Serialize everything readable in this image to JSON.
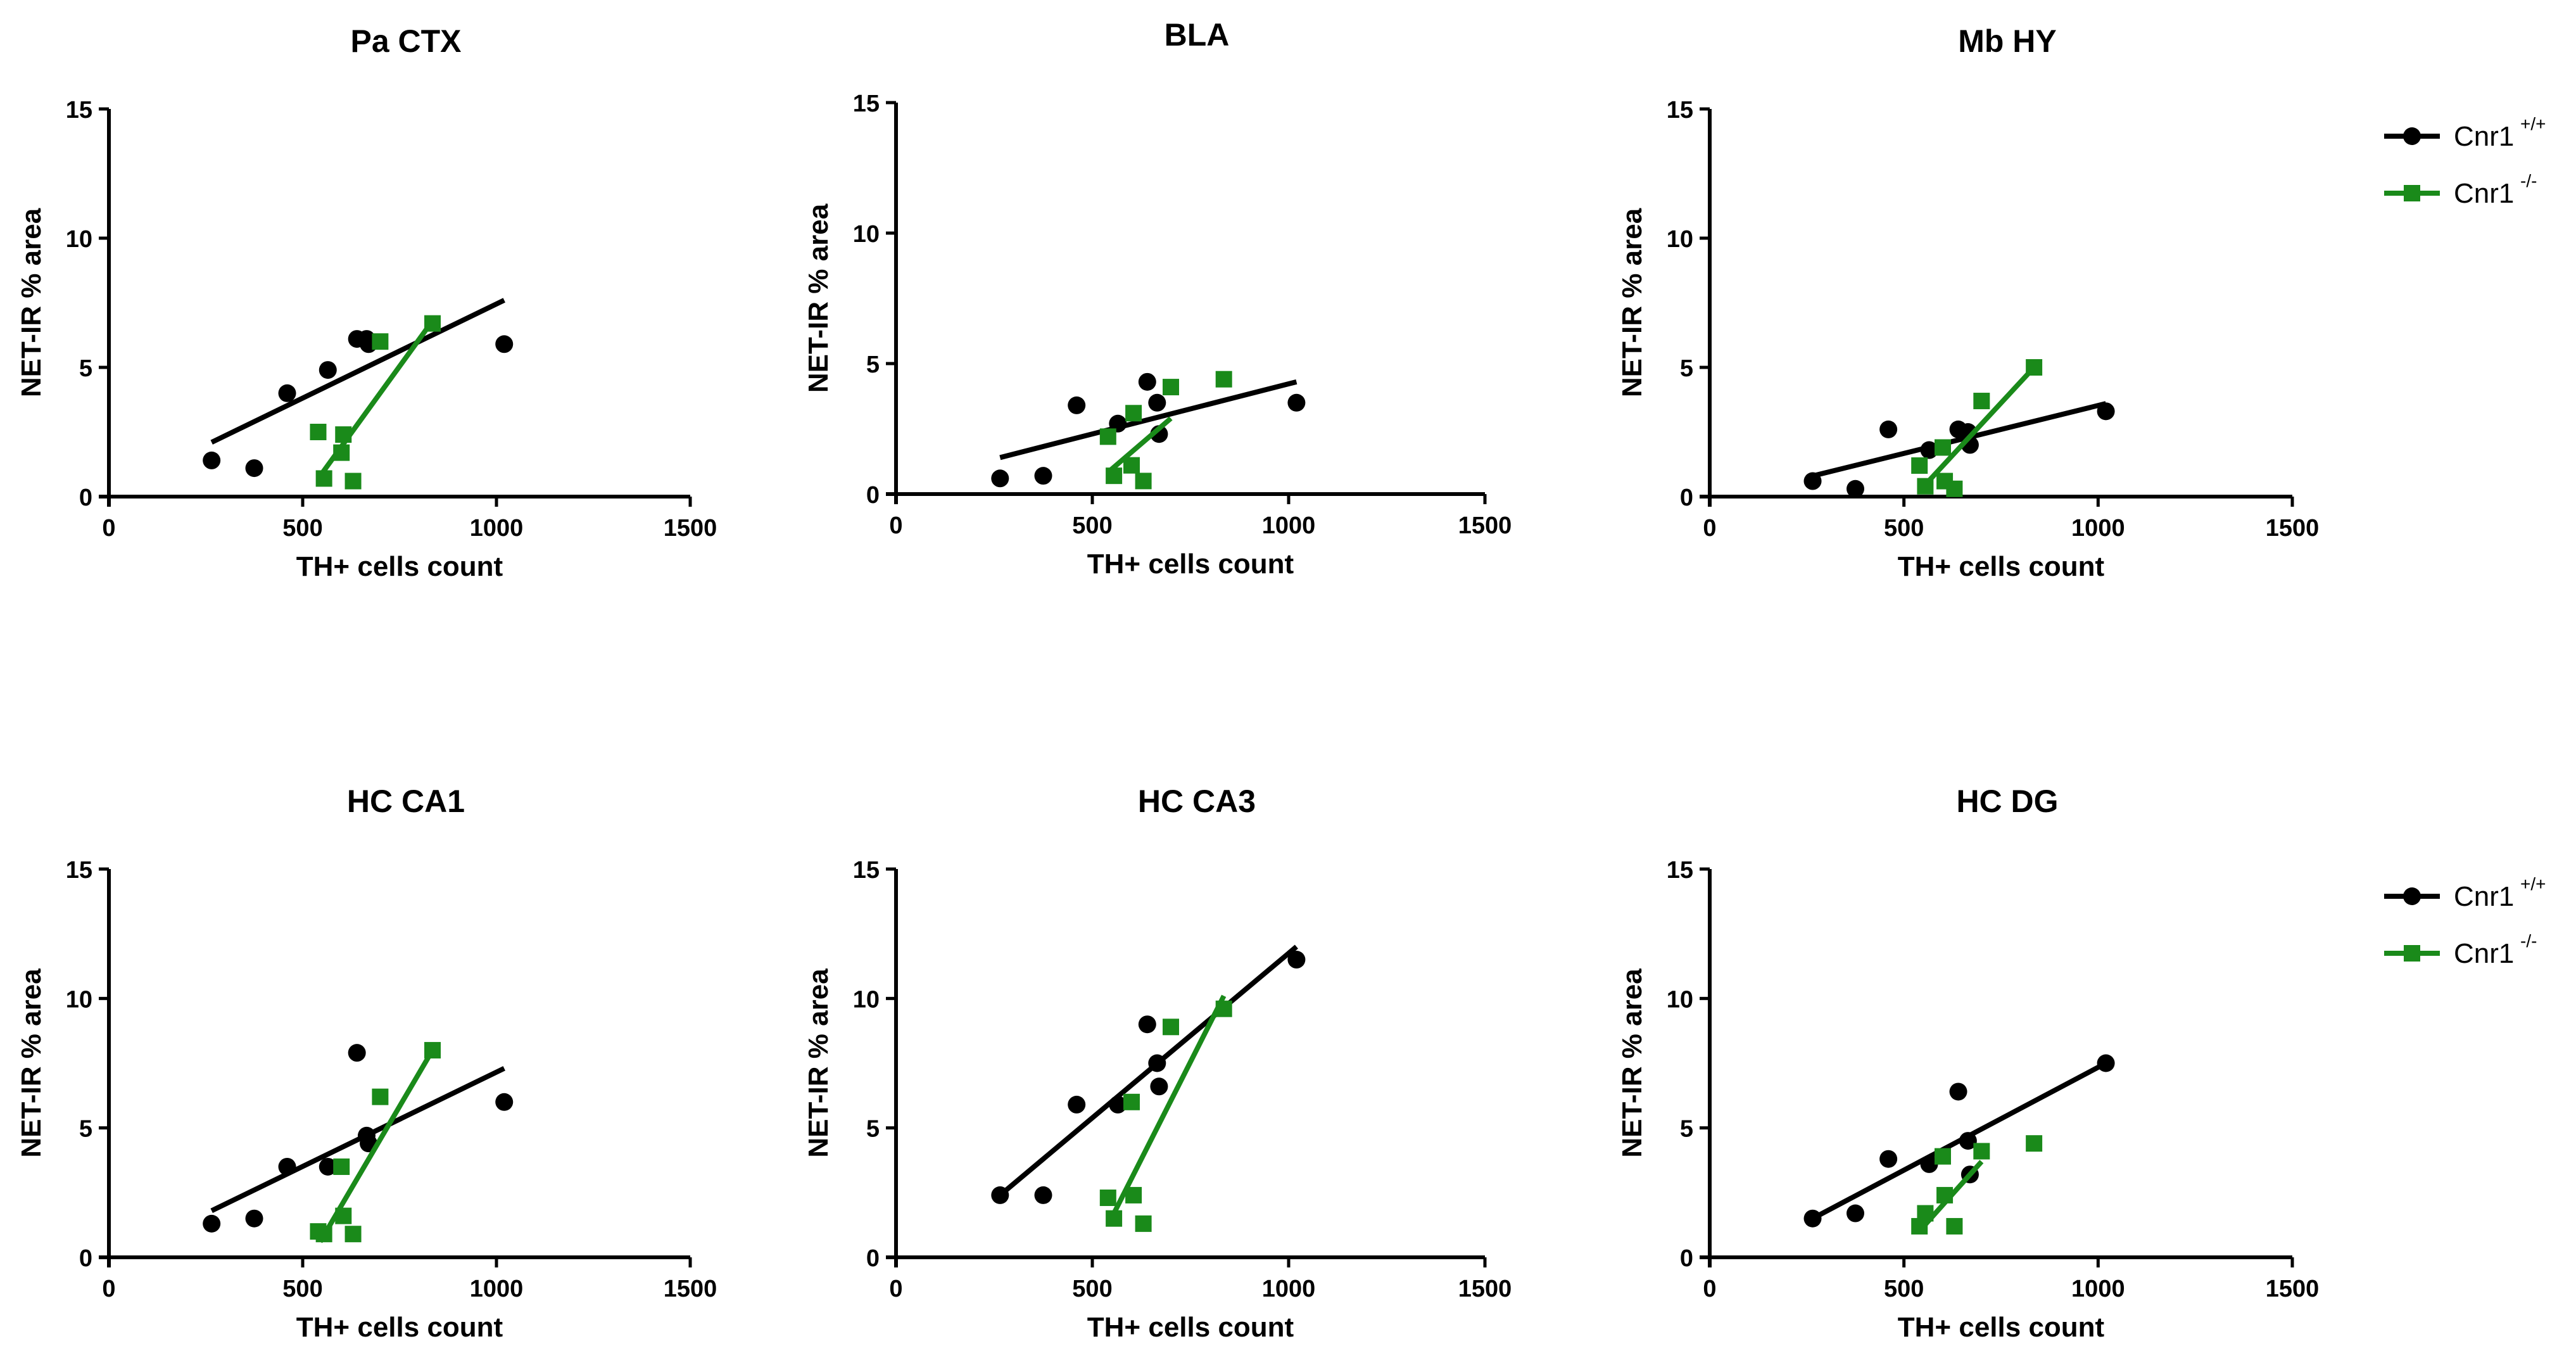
{
  "colors": {
    "wildtype": "#000000",
    "knockout": "#1a8a1a",
    "axis": "#000000",
    "background": "#ffffff"
  },
  "legend": {
    "entries": [
      {
        "series": "wildtype",
        "name": "Cnr1",
        "sup": "+/+",
        "marker": "circle"
      },
      {
        "series": "knockout",
        "name": "Cnr1",
        "sup": "-/-",
        "marker": "square"
      }
    ]
  },
  "chart_data": [
    {
      "type": "scatter",
      "title": "Pa CTX",
      "xlabel": "TH+ cells count",
      "ylabel": "NET-IR % area",
      "xlim": [
        0,
        1500
      ],
      "ylim": [
        0,
        15
      ],
      "xticks": [
        0,
        500,
        1000,
        1500
      ],
      "yticks": [
        0,
        5,
        10,
        15
      ],
      "series": [
        {
          "name": "Cnr1 +/+",
          "key": "wildtype",
          "marker": "circle",
          "points": [
            [
              265,
              1.4
            ],
            [
              375,
              1.1
            ],
            [
              460,
              4.0
            ],
            [
              565,
              4.9
            ],
            [
              640,
              6.1
            ],
            [
              665,
              6.1
            ],
            [
              670,
              5.9
            ],
            [
              1020,
              5.9
            ]
          ],
          "fit": [
            [
              265,
              2.1
            ],
            [
              1020,
              7.6
            ]
          ]
        },
        {
          "name": "Cnr1 -/-",
          "key": "knockout",
          "marker": "square",
          "points": [
            [
              540,
              2.5
            ],
            [
              555,
              0.7
            ],
            [
              600,
              1.7
            ],
            [
              605,
              2.4
            ],
            [
              630,
              0.6
            ],
            [
              700,
              6.0
            ],
            [
              835,
              6.7
            ]
          ],
          "fit": [
            [
              545,
              0.8
            ],
            [
              835,
              6.8
            ]
          ]
        }
      ]
    },
    {
      "type": "scatter",
      "title": "BLA",
      "xlabel": "TH+ cells count",
      "ylabel": "NET-IR % area",
      "xlim": [
        0,
        1500
      ],
      "ylim": [
        0,
        15
      ],
      "xticks": [
        0,
        500,
        1000,
        1500
      ],
      "yticks": [
        0,
        5,
        10,
        15
      ],
      "series": [
        {
          "name": "Cnr1 +/+",
          "key": "wildtype",
          "marker": "circle",
          "points": [
            [
              265,
              0.6
            ],
            [
              375,
              0.7
            ],
            [
              460,
              3.4
            ],
            [
              565,
              2.7
            ],
            [
              640,
              4.3
            ],
            [
              665,
              3.5
            ],
            [
              670,
              2.3
            ],
            [
              1020,
              3.5
            ]
          ],
          "fit": [
            [
              265,
              1.4
            ],
            [
              1020,
              4.3
            ]
          ]
        },
        {
          "name": "Cnr1 -/-",
          "key": "knockout",
          "marker": "square",
          "points": [
            [
              540,
              2.2
            ],
            [
              555,
              0.7
            ],
            [
              600,
              1.1
            ],
            [
              605,
              3.1
            ],
            [
              630,
              0.5
            ],
            [
              700,
              4.1
            ],
            [
              835,
              4.4
            ]
          ],
          "fit": [
            [
              545,
              0.9
            ],
            [
              700,
              2.9
            ]
          ]
        }
      ]
    },
    {
      "type": "scatter",
      "title": "Mb HY",
      "xlabel": "TH+ cells count",
      "ylabel": "NET-IR % area",
      "xlim": [
        0,
        1500
      ],
      "ylim": [
        0,
        15
      ],
      "xticks": [
        0,
        500,
        1000,
        1500
      ],
      "yticks": [
        0,
        5,
        10,
        15
      ],
      "series": [
        {
          "name": "Cnr1 +/+",
          "key": "wildtype",
          "marker": "circle",
          "points": [
            [
              265,
              0.6
            ],
            [
              375,
              0.3
            ],
            [
              460,
              2.6
            ],
            [
              565,
              1.8
            ],
            [
              640,
              2.6
            ],
            [
              665,
              2.5
            ],
            [
              670,
              2.0
            ],
            [
              1020,
              3.3
            ]
          ],
          "fit": [
            [
              265,
              0.8
            ],
            [
              1020,
              3.6
            ]
          ]
        },
        {
          "name": "Cnr1 -/-",
          "key": "knockout",
          "marker": "square",
          "points": [
            [
              540,
              1.2
            ],
            [
              555,
              0.4
            ],
            [
              600,
              1.9
            ],
            [
              605,
              0.6
            ],
            [
              630,
              0.3
            ],
            [
              700,
              3.7
            ],
            [
              835,
              5.0
            ]
          ],
          "fit": [
            [
              545,
              0.3
            ],
            [
              835,
              5.0
            ]
          ]
        }
      ]
    },
    {
      "type": "scatter",
      "title": "HC CA1",
      "xlabel": "TH+ cells count",
      "ylabel": "NET-IR % area",
      "xlim": [
        0,
        1500
      ],
      "ylim": [
        0,
        15
      ],
      "xticks": [
        0,
        500,
        1000,
        1500
      ],
      "yticks": [
        0,
        5,
        10,
        15
      ],
      "series": [
        {
          "name": "Cnr1 +/+",
          "key": "wildtype",
          "marker": "circle",
          "points": [
            [
              265,
              1.3
            ],
            [
              375,
              1.5
            ],
            [
              460,
              3.5
            ],
            [
              565,
              3.5
            ],
            [
              640,
              7.9
            ],
            [
              665,
              4.7
            ],
            [
              670,
              4.4
            ],
            [
              1020,
              6.0
            ]
          ],
          "fit": [
            [
              265,
              1.8
            ],
            [
              1020,
              7.3
            ]
          ]
        },
        {
          "name": "Cnr1 -/-",
          "key": "knockout",
          "marker": "square",
          "points": [
            [
              540,
              1.0
            ],
            [
              555,
              0.9
            ],
            [
              600,
              3.5
            ],
            [
              605,
              1.6
            ],
            [
              630,
              0.9
            ],
            [
              700,
              6.2
            ],
            [
              835,
              8.0
            ]
          ],
          "fit": [
            [
              545,
              0.6
            ],
            [
              835,
              8.0
            ]
          ]
        }
      ]
    },
    {
      "type": "scatter",
      "title": "HC CA3",
      "xlabel": "TH+ cells count",
      "ylabel": "NET-IR % area",
      "xlim": [
        0,
        1500
      ],
      "ylim": [
        0,
        15
      ],
      "xticks": [
        0,
        500,
        1000,
        1500
      ],
      "yticks": [
        0,
        5,
        10,
        15
      ],
      "series": [
        {
          "name": "Cnr1 +/+",
          "key": "wildtype",
          "marker": "circle",
          "points": [
            [
              265,
              2.4
            ],
            [
              375,
              2.4
            ],
            [
              460,
              5.9
            ],
            [
              565,
              5.9
            ],
            [
              640,
              9.0
            ],
            [
              665,
              7.5
            ],
            [
              670,
              6.6
            ],
            [
              1020,
              11.5
            ]
          ],
          "fit": [
            [
              265,
              2.4
            ],
            [
              1020,
              12.0
            ]
          ]
        },
        {
          "name": "Cnr1 -/-",
          "key": "knockout",
          "marker": "square",
          "points": [
            [
              540,
              2.3
            ],
            [
              555,
              1.5
            ],
            [
              600,
              6.0
            ],
            [
              605,
              2.4
            ],
            [
              630,
              1.3
            ],
            [
              700,
              8.9
            ],
            [
              835,
              9.6
            ]
          ],
          "fit": [
            [
              545,
              1.4
            ],
            [
              835,
              10.1
            ]
          ]
        }
      ]
    },
    {
      "type": "scatter",
      "title": "HC DG",
      "xlabel": "TH+ cells count",
      "ylabel": "NET-IR % area",
      "xlim": [
        0,
        1500
      ],
      "ylim": [
        0,
        15
      ],
      "xticks": [
        0,
        500,
        1000,
        1500
      ],
      "yticks": [
        0,
        5,
        10,
        15
      ],
      "series": [
        {
          "name": "Cnr1 +/+",
          "key": "wildtype",
          "marker": "circle",
          "points": [
            [
              265,
              1.5
            ],
            [
              375,
              1.7
            ],
            [
              460,
              3.8
            ],
            [
              565,
              3.6
            ],
            [
              640,
              6.4
            ],
            [
              665,
              4.5
            ],
            [
              670,
              3.2
            ],
            [
              1020,
              7.5
            ]
          ],
          "fit": [
            [
              265,
              1.5
            ],
            [
              1020,
              7.5
            ]
          ]
        },
        {
          "name": "Cnr1 -/-",
          "key": "knockout",
          "marker": "square",
          "points": [
            [
              540,
              1.2
            ],
            [
              555,
              1.7
            ],
            [
              600,
              3.9
            ],
            [
              605,
              2.4
            ],
            [
              630,
              1.2
            ],
            [
              700,
              4.1
            ],
            [
              835,
              4.4
            ]
          ],
          "fit": [
            [
              545,
              1.1
            ],
            [
              700,
              3.7
            ]
          ]
        }
      ]
    }
  ]
}
